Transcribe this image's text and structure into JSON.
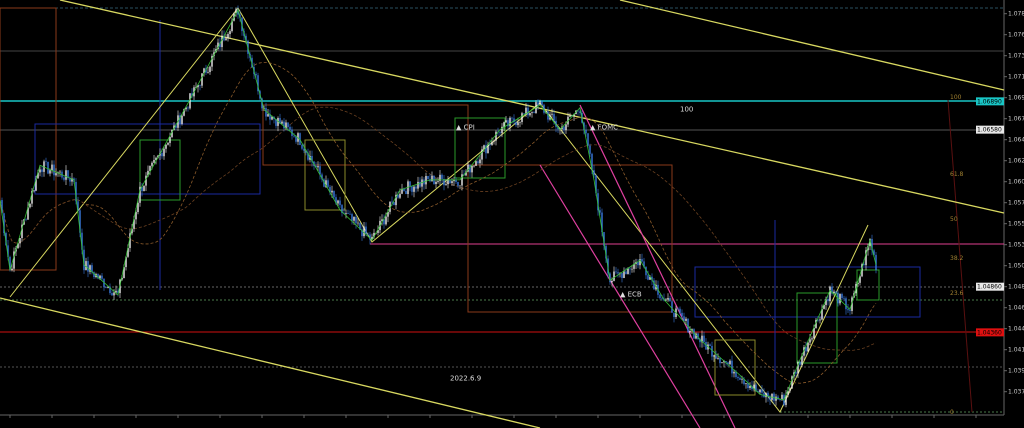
{
  "chart_data": {
    "type": "candlestick",
    "title": "",
    "grid": false,
    "background": "#000000",
    "ylim": [
      1.034,
      1.08
    ],
    "xlim": [
      0,
      500
    ],
    "y_ticks": [
      "1.07850",
      "1.07620",
      "1.07390",
      "1.07160",
      "1.06930",
      "1.06700",
      "1.06470",
      "1.06240",
      "1.06010",
      "1.05780",
      "1.05550",
      "1.05320",
      "1.05090",
      "1.04860",
      "1.04630",
      "1.04400",
      "1.04170",
      "1.03940",
      "1.03710"
    ],
    "price_markers": [
      {
        "value": "1.06890",
        "price": 1.0689,
        "color": "#19c6c6"
      },
      {
        "value": "1.06580",
        "price": 1.0658,
        "color": "#e8e8e8"
      },
      {
        "value": "1.04860",
        "price": 1.0486,
        "color": "#e8e8e8"
      },
      {
        "value": "1.04360",
        "price": 1.0436,
        "color": "#e01010"
      }
    ],
    "close_path": {
      "bar": [
        0,
        5,
        20,
        37,
        42,
        59,
        70,
        95,
        119,
        132,
        150,
        170,
        186,
        200,
        215,
        230,
        250,
        270,
        280,
        290,
        297,
        305,
        320,
        332,
        350,
        370,
        380,
        392,
        400,
        415,
        425,
        435,
        438
      ],
      "price": [
        1.0581,
        1.0504,
        1.0619,
        1.0603,
        1.051,
        1.0477,
        1.0592,
        1.0691,
        1.0789,
        1.068,
        1.0647,
        1.057,
        1.0537,
        1.0592,
        1.0603,
        1.0603,
        1.0658,
        1.0685,
        1.0658,
        1.0682,
        1.0603,
        1.0493,
        1.0515,
        1.0472,
        1.0428,
        1.0389,
        1.0368,
        1.0362,
        1.0406,
        1.0482,
        1.0461,
        1.0537,
        1.051
      ]
    },
    "annotations": [
      {
        "text": "CPI",
        "bar": 228,
        "price": 1.0658
      },
      {
        "text": "FOMC",
        "bar": 295,
        "price": 1.0658
      },
      {
        "text": "ECB",
        "bar": 310,
        "price": 1.0475
      },
      {
        "text": "100",
        "bar": 340,
        "price": 1.0678
      },
      {
        "text": "2022.6.9",
        "bar": 225,
        "price": 1.0383
      }
    ],
    "fib_labels": [
      "100",
      "61.8",
      "50",
      "38.2",
      "23.6",
      "0"
    ],
    "colors": {
      "up_candle": "#f0f0f0",
      "down_candle": "#3a7be0",
      "trendline": "#d8d860",
      "zigzag": "#35c035",
      "pink_line": "#e040a0",
      "red_line": "#d01010",
      "cyan_line": "#19c6c6"
    }
  }
}
